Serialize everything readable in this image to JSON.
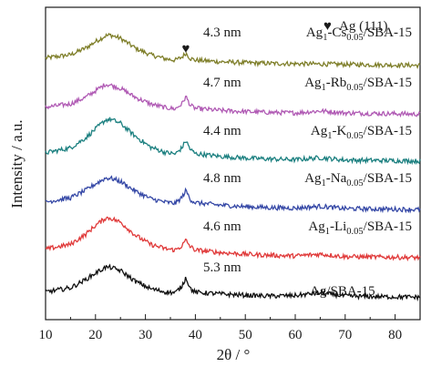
{
  "chart_data": {
    "type": "line",
    "xlabel": "2θ / °",
    "ylabel": "Intensity / a.u.",
    "xlim": [
      10,
      85
    ],
    "x_ticks": [
      "10",
      "20",
      "30",
      "40",
      "50",
      "60",
      "70",
      "80"
    ],
    "y_ticks_labeled": false,
    "legend": {
      "marker": "♥",
      "text": "Ag (111)",
      "placement": "top-right"
    },
    "peak_marker": {
      "symbol": "♥",
      "x": 38.1
    },
    "series": [
      {
        "name": "Ag1-Cs0.05/SBA-15",
        "label": {
          "base": "Ag",
          "sub1": "1",
          "mid": "-Cs",
          "sub2": "0.05",
          "tail": "/SBA-15"
        },
        "crystallite_size": "4.3 nm",
        "color": "#7f7f2a",
        "x": [
          10,
          15,
          18,
          20,
          22,
          23,
          25,
          28,
          31,
          34,
          36,
          37.3,
          38.1,
          39,
          40,
          45,
          50,
          55,
          60,
          65,
          70,
          75,
          80,
          85
        ],
        "y": [
          0.35,
          0.55,
          0.95,
          1.35,
          1.7,
          1.75,
          1.55,
          0.95,
          0.55,
          0.3,
          0.22,
          0.4,
          0.65,
          0.32,
          0.22,
          0.12,
          0.06,
          0.02,
          0.0,
          -0.02,
          -0.04,
          -0.06,
          -0.08,
          -0.1
        ]
      },
      {
        "name": "Ag1-Rb0.05/SBA-15",
        "label": {
          "base": "Ag",
          "sub1": "1",
          "mid": "-Rb",
          "sub2": "0.05",
          "tail": "/SBA-15"
        },
        "crystallite_size": "4.7 nm",
        "color": "#b05ab4",
        "x": [
          10,
          15,
          18,
          20,
          22,
          23,
          25,
          28,
          31,
          34,
          36,
          37.3,
          38.1,
          39,
          40,
          45,
          50,
          55,
          60,
          65,
          70,
          75,
          80,
          85
        ],
        "y": [
          0.35,
          0.55,
          0.95,
          1.35,
          1.75,
          1.7,
          1.5,
          0.95,
          0.55,
          0.32,
          0.25,
          0.55,
          1.0,
          0.45,
          0.28,
          0.15,
          0.08,
          0.03,
          0.0,
          0.12,
          0.0,
          -0.03,
          -0.05,
          -0.08
        ]
      },
      {
        "name": "Ag1-K0.05/SBA-15",
        "label": {
          "base": "Ag",
          "sub1": "1",
          "mid": "-K",
          "sub2": "0.05",
          "tail": "/SBA-15"
        },
        "crystallite_size": "4.4 nm",
        "color": "#1c8080",
        "x": [
          10,
          15,
          18,
          20,
          22,
          23,
          25,
          28,
          31,
          34,
          36,
          37.3,
          38.1,
          39,
          40,
          45,
          50,
          55,
          60,
          65,
          70,
          75,
          80,
          85
        ],
        "y": [
          0.4,
          0.7,
          1.3,
          1.85,
          2.4,
          2.45,
          2.2,
          1.4,
          0.75,
          0.42,
          0.33,
          0.7,
          1.15,
          0.6,
          0.35,
          0.18,
          0.08,
          0.02,
          -0.02,
          0.1,
          -0.04,
          -0.06,
          -0.08,
          -0.1
        ]
      },
      {
        "name": "Ag1-Na0.05/SBA-15",
        "label": {
          "base": "Ag",
          "sub1": "1",
          "mid": "-Na",
          "sub2": "0.05",
          "tail": "/SBA-15"
        },
        "crystallite_size": "4.8 nm",
        "color": "#3548a6",
        "x": [
          10,
          15,
          18,
          20,
          22,
          23,
          25,
          28,
          31,
          34,
          36,
          37.3,
          38.1,
          39,
          40,
          45,
          50,
          55,
          60,
          65,
          70,
          75,
          80,
          85
        ],
        "y": [
          0.35,
          0.6,
          1.05,
          1.45,
          1.8,
          1.8,
          1.6,
          1.0,
          0.55,
          0.33,
          0.26,
          0.62,
          1.05,
          0.5,
          0.3,
          0.15,
          0.06,
          0.0,
          -0.03,
          0.08,
          -0.06,
          -0.08,
          -0.1,
          -0.12
        ]
      },
      {
        "name": "Ag1-Li0.05/SBA-15",
        "label": {
          "base": "Ag",
          "sub1": "1",
          "mid": "-Li",
          "sub2": "0.05",
          "tail": "/SBA-15"
        },
        "crystallite_size": "4.6 nm",
        "color": "#e03a3a",
        "x": [
          10,
          15,
          18,
          20,
          22,
          23,
          25,
          28,
          31,
          34,
          36,
          37.3,
          38.1,
          39,
          40,
          45,
          50,
          55,
          60,
          65,
          70,
          75,
          80,
          85
        ],
        "y": [
          0.35,
          0.65,
          1.25,
          1.8,
          2.25,
          2.25,
          2.0,
          1.2,
          0.65,
          0.38,
          0.3,
          0.55,
          0.9,
          0.5,
          0.3,
          0.15,
          0.05,
          -0.02,
          -0.06,
          0.05,
          -0.1,
          -0.12,
          -0.14,
          -0.16
        ]
      },
      {
        "name": "Ag/SBA-15",
        "label": {
          "base": "Ag/SBA-15",
          "sub1": "",
          "mid": "",
          "sub2": "",
          "tail": ""
        },
        "crystallite_size": "5.3 nm",
        "color": "#111111",
        "x": [
          10,
          15,
          18,
          20,
          22,
          23,
          25,
          28,
          31,
          34,
          36,
          37.3,
          38.1,
          39,
          40,
          45,
          50,
          55,
          60,
          65,
          70,
          75,
          80,
          85
        ],
        "y": [
          0.3,
          0.55,
          1.05,
          1.45,
          1.8,
          1.8,
          1.6,
          0.95,
          0.5,
          0.3,
          0.25,
          0.65,
          1.2,
          0.5,
          0.28,
          0.18,
          0.1,
          0.05,
          0.08,
          0.25,
          0.05,
          0.02,
          0.0,
          -0.02
        ]
      }
    ]
  }
}
